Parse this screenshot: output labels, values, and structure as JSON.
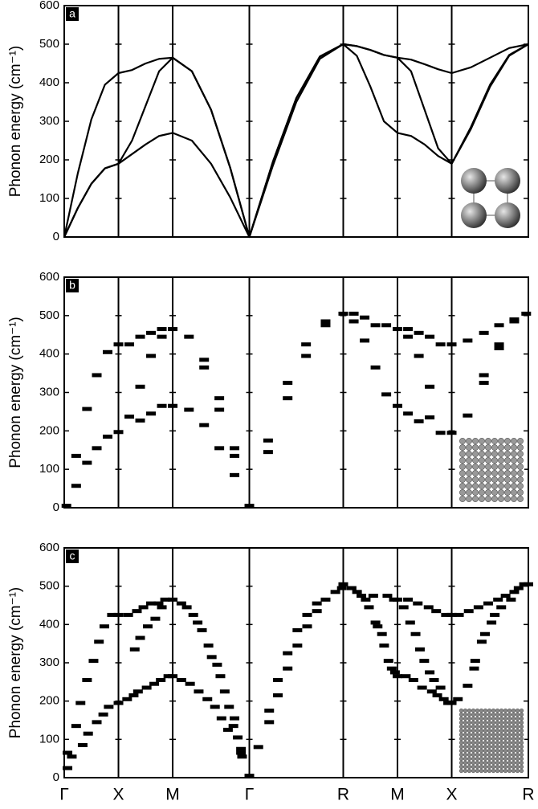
{
  "chart_data": [
    {
      "type": "line",
      "label": "a",
      "ylabel": "Phonon energy (cm⁻¹)",
      "xlim": [
        0,
        4.28
      ],
      "xticks": [
        0,
        0.5,
        1.0,
        1.707,
        2.573,
        3.073,
        3.573,
        4.28
      ],
      "ylim": [
        0,
        600
      ],
      "yticks": [
        0,
        100,
        200,
        300,
        400,
        500,
        600
      ],
      "x": [
        0,
        0.125,
        0.25,
        0.375,
        0.5,
        0.625,
        0.75,
        0.875,
        1.0,
        1.177,
        1.354,
        1.53,
        1.707,
        1.924,
        2.14,
        2.357,
        2.573,
        2.698,
        2.823,
        2.948,
        3.073,
        3.198,
        3.323,
        3.448,
        3.573,
        3.75,
        3.927,
        4.103,
        4.28
      ],
      "series": [
        {
          "color": "#000000",
          "values": [
            0,
            75,
            138,
            178,
            190,
            215,
            240,
            262,
            270,
            250,
            190,
            103,
            0,
            185,
            350,
            462,
            500,
            470,
            390,
            300,
            270,
            262,
            240,
            210,
            190,
            280,
            390,
            470,
            500
          ]
        },
        {
          "color": "#000000",
          "values": [
            0,
            75,
            138,
            178,
            190,
            250,
            340,
            430,
            465,
            430,
            330,
            180,
            0,
            195,
            360,
            468,
            500,
            495,
            485,
            472,
            465,
            430,
            330,
            230,
            190,
            285,
            395,
            472,
            500
          ]
        },
        {
          "color": "#000000",
          "values": [
            0,
            165,
            305,
            395,
            425,
            433,
            450,
            462,
            465,
            430,
            330,
            180,
            0,
            195,
            360,
            468,
            500,
            495,
            485,
            472,
            465,
            460,
            448,
            435,
            425,
            440,
            465,
            490,
            500
          ]
        }
      ]
    },
    {
      "type": "scatter",
      "label": "b",
      "ylabel": "Phonon energy (cm⁻¹)",
      "color": "#000000",
      "xlim": [
        0,
        4.28
      ],
      "xticks": [
        0,
        0.5,
        1.0,
        1.707,
        2.573,
        3.073,
        3.573,
        4.28
      ],
      "ylim": [
        0,
        600
      ],
      "yticks": [
        0,
        100,
        200,
        300,
        400,
        500,
        600
      ],
      "x": [
        0.02,
        0.11,
        0.11,
        0.21,
        0.21,
        0.3,
        0.3,
        0.4,
        0.4,
        0.5,
        0.5,
        0.6,
        0.6,
        0.7,
        0.7,
        0.7,
        0.8,
        0.8,
        0.8,
        0.9,
        0.9,
        0.9,
        1.0,
        1.0,
        1.15,
        1.15,
        1.29,
        1.29,
        1.29,
        1.43,
        1.43,
        1.43,
        1.57,
        1.57,
        1.57,
        1.707,
        1.88,
        1.88,
        2.06,
        2.06,
        2.23,
        2.23,
        2.41,
        2.41,
        2.573,
        2.67,
        2.67,
        2.77,
        2.77,
        2.87,
        2.87,
        2.97,
        2.97,
        3.073,
        3.073,
        3.17,
        3.17,
        3.17,
        3.27,
        3.27,
        3.27,
        3.37,
        3.37,
        3.37,
        3.47,
        3.47,
        3.573,
        3.573,
        3.72,
        3.72,
        3.87,
        3.87,
        3.87,
        4.01,
        4.01,
        4.01,
        4.15,
        4.15,
        4.26
      ],
      "values": [
        5,
        57,
        135,
        117,
        257,
        155,
        345,
        185,
        405,
        197,
        425,
        237,
        425,
        227,
        315,
        445,
        245,
        395,
        455,
        265,
        445,
        465,
        265,
        465,
        255,
        445,
        215,
        365,
        385,
        255,
        285,
        155,
        135,
        155,
        85,
        5,
        145,
        175,
        285,
        325,
        395,
        425,
        475,
        485,
        505,
        485,
        505,
        435,
        495,
        365,
        475,
        295,
        475,
        265,
        465,
        245,
        445,
        465,
        225,
        395,
        455,
        235,
        315,
        445,
        195,
        425,
        195,
        425,
        240,
        435,
        325,
        345,
        455,
        415,
        425,
        475,
        485,
        490,
        505
      ]
    },
    {
      "type": "scatter",
      "label": "c",
      "ylabel": "Phonon energy (cm⁻¹)",
      "color": "#000000",
      "xlim": [
        0,
        4.28
      ],
      "xticks": [
        {
          "value": 0,
          "label": "Γ"
        },
        {
          "value": 0.5,
          "label": "X"
        },
        {
          "value": 1.0,
          "label": "M"
        },
        {
          "value": 1.707,
          "label": "Γ"
        },
        {
          "value": 2.573,
          "label": "R"
        },
        {
          "value": 3.073,
          "label": "M"
        },
        {
          "value": 3.573,
          "label": "X"
        },
        {
          "value": 4.28,
          "label": "R"
        }
      ],
      "ylim": [
        0,
        600
      ],
      "yticks": [
        0,
        100,
        200,
        300,
        400,
        500,
        600
      ],
      "x": [
        0.03,
        0.03,
        0.07,
        0.11,
        0.15,
        0.17,
        0.21,
        0.22,
        0.27,
        0.3,
        0.32,
        0.36,
        0.37,
        0.41,
        0.44,
        0.5,
        0.5,
        0.58,
        0.59,
        0.64,
        0.65,
        0.67,
        0.68,
        0.7,
        0.73,
        0.76,
        0.77,
        0.8,
        0.83,
        0.84,
        0.87,
        0.89,
        0.9,
        0.93,
        0.96,
        1.0,
        1.0,
        1.08,
        1.08,
        1.13,
        1.16,
        1.19,
        1.23,
        1.24,
        1.27,
        1.32,
        1.33,
        1.36,
        1.39,
        1.41,
        1.44,
        1.45,
        1.48,
        1.51,
        1.52,
        1.56,
        1.57,
        1.6,
        1.63,
        1.64,
        1.63,
        1.707,
        1.79,
        1.89,
        1.89,
        1.97,
        1.97,
        2.06,
        2.06,
        2.15,
        2.15,
        2.24,
        2.24,
        2.33,
        2.33,
        2.41,
        2.5,
        2.56,
        2.573,
        2.65,
        2.7,
        2.74,
        2.78,
        2.81,
        2.85,
        2.87,
        2.89,
        2.93,
        2.95,
        2.98,
        2.99,
        3.02,
        3.04,
        3.05,
        3.073,
        3.073,
        3.13,
        3.15,
        3.17,
        3.19,
        3.22,
        3.24,
        3.26,
        3.28,
        3.3,
        3.32,
        3.36,
        3.37,
        3.39,
        3.41,
        3.43,
        3.44,
        3.47,
        3.5,
        3.52,
        3.54,
        3.573,
        3.573,
        3.63,
        3.64,
        3.72,
        3.73,
        3.78,
        3.79,
        3.82,
        3.85,
        3.88,
        3.91,
        3.94,
        3.97,
        4.0,
        4.03,
        4.07,
        4.12,
        4.15,
        4.19,
        4.24,
        4.28
      ],
      "values": [
        25,
        65,
        55,
        135,
        195,
        85,
        255,
        115,
        305,
        145,
        355,
        165,
        395,
        185,
        425,
        195,
        425,
        205,
        425,
        215,
        335,
        435,
        225,
        365,
        445,
        235,
        395,
        455,
        245,
        415,
        455,
        255,
        445,
        465,
        265,
        265,
        465,
        255,
        455,
        445,
        245,
        425,
        405,
        225,
        385,
        205,
        345,
        315,
        185,
        295,
        265,
        155,
        225,
        125,
        185,
        135,
        155,
        105,
        65,
        55,
        75,
        5,
        80,
        145,
        175,
        215,
        255,
        285,
        325,
        345,
        385,
        395,
        425,
        435,
        455,
        465,
        485,
        495,
        505,
        495,
        485,
        475,
        465,
        445,
        475,
        405,
        395,
        375,
        345,
        475,
        305,
        285,
        465,
        275,
        265,
        465,
        445,
        265,
        465,
        405,
        255,
        375,
        455,
        335,
        235,
        305,
        445,
        275,
        225,
        255,
        435,
        215,
        235,
        205,
        425,
        195,
        195,
        425,
        205,
        425,
        240,
        435,
        285,
        305,
        445,
        355,
        375,
        455,
        405,
        425,
        465,
        445,
        475,
        465,
        485,
        495,
        505,
        505
      ]
    }
  ]
}
